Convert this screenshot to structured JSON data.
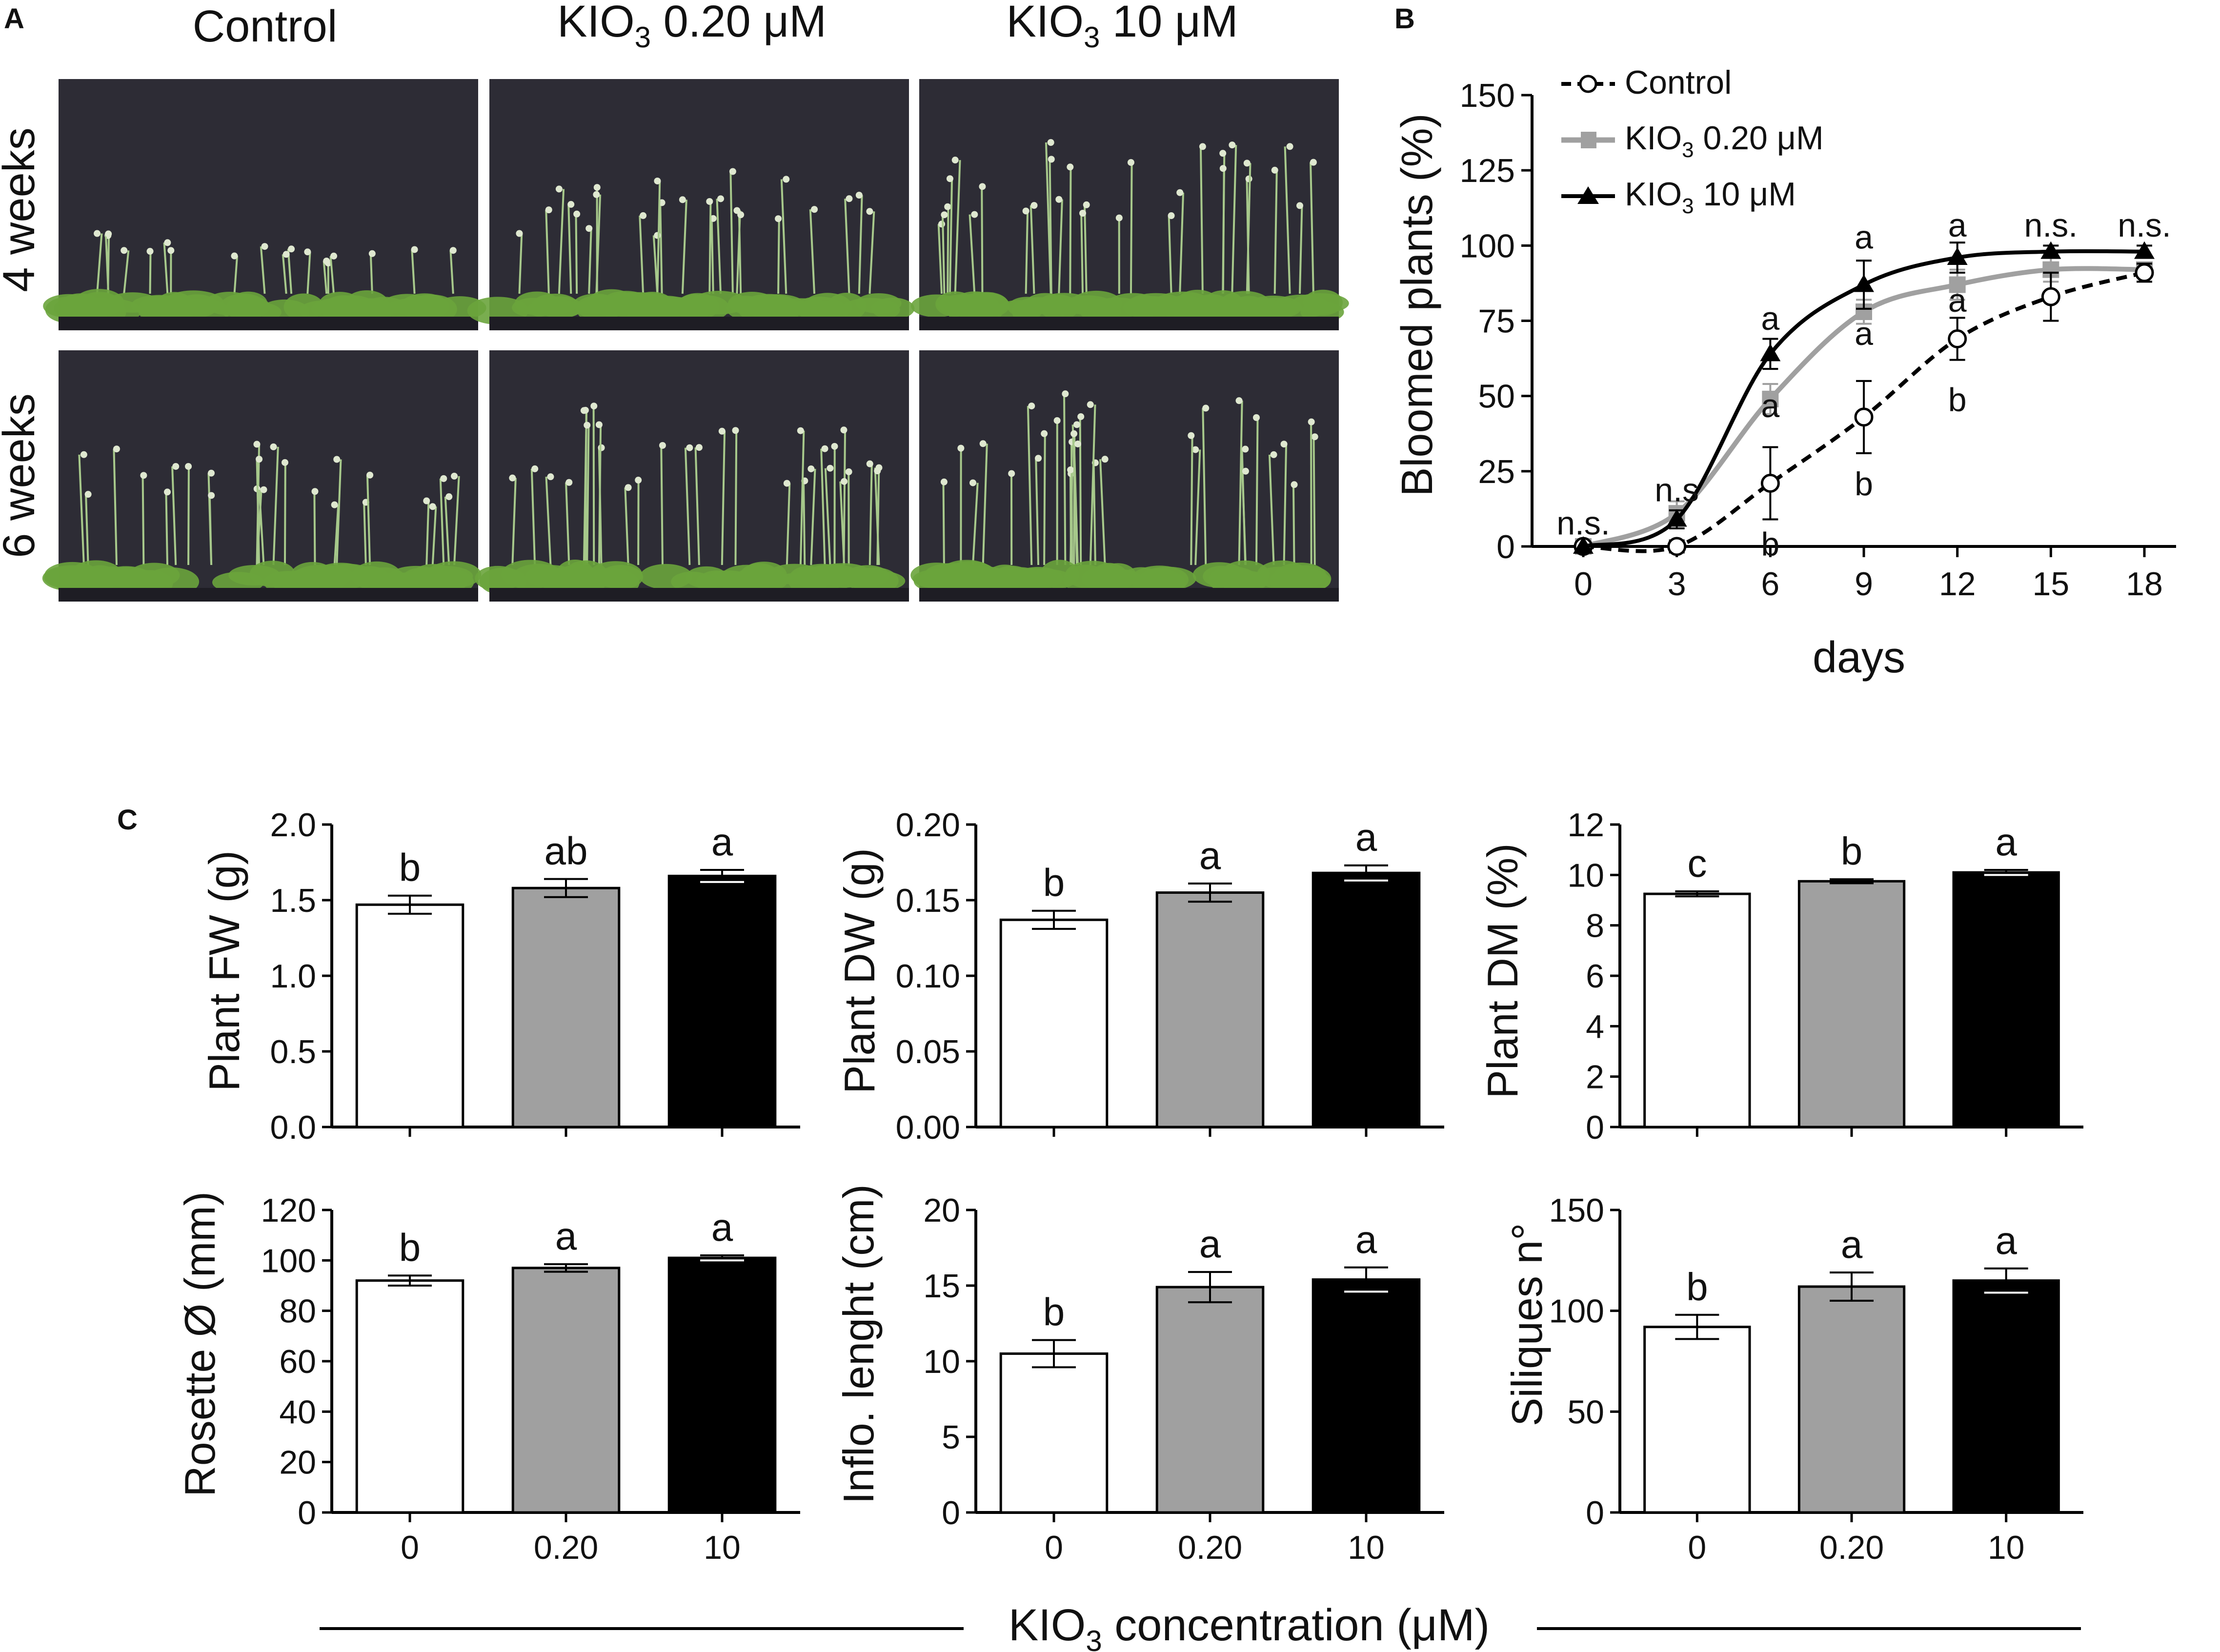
{
  "panels": {
    "a_letter": "A",
    "b_letter": "B",
    "c_letter": "C"
  },
  "photos": {
    "columns": [
      {
        "main": "Control",
        "sub": "",
        "tail": ""
      },
      {
        "main": "KIO",
        "sub": "3",
        "tail": " 0.20 μM"
      },
      {
        "main": "KIO",
        "sub": "3",
        "tail": " 10 μM"
      }
    ],
    "rows": [
      "4 weeks",
      "6 weeks"
    ],
    "relative_height": [
      [
        0.35,
        0.7,
        0.85
      ],
      [
        0.7,
        0.9,
        1.0
      ]
    ]
  },
  "colors": {
    "control": "#ffffff",
    "kio_low": "#a0a0a0",
    "kio_high": "#000000",
    "photo_bg": "#2d2c35",
    "leaf": "#6aa43c",
    "stem": "#a7c98b"
  },
  "chart_data": [
    {
      "id": "bloom",
      "type": "line",
      "title": "",
      "xlabel": "days",
      "ylabel": "Bloomed plants (%)",
      "x": [
        0,
        3,
        6,
        9,
        12,
        15,
        18
      ],
      "xlim": [
        0,
        18
      ],
      "ylim": [
        0,
        150
      ],
      "yticks": [
        0,
        25,
        50,
        75,
        100,
        125,
        150
      ],
      "xticks": [
        0,
        3,
        6,
        9,
        12,
        15,
        18
      ],
      "legend": [
        {
          "main": "Control",
          "sub": "",
          "tail": ""
        },
        {
          "main": "KIO",
          "sub": "3",
          "tail": " 0.20 μM"
        },
        {
          "main": "KIO",
          "sub": "3",
          "tail": " 10 μM"
        }
      ],
      "series": [
        {
          "name": "Control",
          "values": [
            0,
            0,
            21,
            43,
            69,
            83,
            91
          ],
          "errors": [
            0,
            2,
            12,
            12,
            7,
            8,
            3
          ]
        },
        {
          "name": "KIO3 0.20 μM",
          "values": [
            0,
            11,
            49,
            78,
            87,
            92,
            92
          ],
          "errors": [
            0,
            4,
            5,
            4,
            5,
            4,
            2
          ]
        },
        {
          "name": "KIO3 10 μM",
          "values": [
            0,
            9,
            64,
            87,
            96,
            98,
            98
          ],
          "errors": [
            0,
            3,
            5,
            8,
            5,
            2,
            2
          ]
        }
      ],
      "annotations": [
        {
          "x": 0,
          "y": 4,
          "text": "n.s."
        },
        {
          "x": 3,
          "y": 15,
          "text": "n.s"
        },
        {
          "x": 6,
          "y": 72,
          "text": "a"
        },
        {
          "x": 6,
          "y": 43,
          "text": "a"
        },
        {
          "x": 6,
          "y": -3,
          "text": "b"
        },
        {
          "x": 9,
          "y": 99,
          "text": "a"
        },
        {
          "x": 9,
          "y": 67,
          "text": "a"
        },
        {
          "x": 9,
          "y": 17,
          "text": "b"
        },
        {
          "x": 12,
          "y": 103,
          "text": "a"
        },
        {
          "x": 12,
          "y": 78,
          "text": "a"
        },
        {
          "x": 12,
          "y": 45,
          "text": "b"
        },
        {
          "x": 15,
          "y": 103,
          "text": "n.s."
        },
        {
          "x": 18,
          "y": 103,
          "text": "n.s."
        }
      ]
    },
    {
      "id": "fw",
      "type": "bar",
      "ylabel": "Plant FW (g)",
      "categories": [
        "0",
        "0.20",
        "10"
      ],
      "values": [
        1.47,
        1.58,
        1.66
      ],
      "errors": [
        0.06,
        0.06,
        0.04
      ],
      "letters": [
        "b",
        "ab",
        "a"
      ],
      "ylim": [
        0,
        2.0
      ],
      "yticks": [
        "0.0",
        "0.5",
        "1.0",
        "1.5",
        "2.0"
      ]
    },
    {
      "id": "dw",
      "type": "bar",
      "ylabel": "Plant DW (g)",
      "categories": [
        "0",
        "0.20",
        "10"
      ],
      "values": [
        0.137,
        0.155,
        0.168
      ],
      "errors": [
        0.006,
        0.006,
        0.005
      ],
      "letters": [
        "b",
        "a",
        "a"
      ],
      "ylim": [
        0,
        0.2
      ],
      "yticks": [
        "0.00",
        "0.05",
        "0.10",
        "0.15",
        "0.20"
      ]
    },
    {
      "id": "dm",
      "type": "bar",
      "ylabel": "Plant DM (%)",
      "categories": [
        "0",
        "0.20",
        "10"
      ],
      "values": [
        9.25,
        9.75,
        10.1
      ],
      "errors": [
        0.1,
        0.08,
        0.1
      ],
      "letters": [
        "c",
        "b",
        "a"
      ],
      "ylim": [
        0,
        12
      ],
      "yticks": [
        "0",
        "2",
        "4",
        "6",
        "8",
        "10",
        "12"
      ]
    },
    {
      "id": "rosette",
      "type": "bar",
      "ylabel": "Rosette Ø (mm)",
      "categories": [
        "0",
        "0.20",
        "10"
      ],
      "values": [
        92,
        97,
        101
      ],
      "errors": [
        2,
        1.5,
        1
      ],
      "letters": [
        "b",
        "a",
        "a"
      ],
      "ylim": [
        0,
        120
      ],
      "yticks": [
        "0",
        "20",
        "40",
        "60",
        "80",
        "100",
        "120"
      ]
    },
    {
      "id": "inflo",
      "type": "bar",
      "ylabel": "Inflo. lenght (cm)",
      "categories": [
        "0",
        "0.20",
        "10"
      ],
      "values": [
        10.5,
        14.9,
        15.4
      ],
      "errors": [
        0.9,
        1.0,
        0.8
      ],
      "letters": [
        "b",
        "a",
        "a"
      ],
      "ylim": [
        0,
        20
      ],
      "yticks": [
        "0",
        "5",
        "10",
        "15",
        "20"
      ]
    },
    {
      "id": "siliques",
      "type": "bar",
      "ylabel": "Siliques n°",
      "categories": [
        "0",
        "0.20",
        "10"
      ],
      "values": [
        92,
        112,
        115
      ],
      "errors": [
        6,
        7,
        6
      ],
      "letters": [
        "b",
        "a",
        "a"
      ],
      "ylim": [
        0,
        150
      ],
      "yticks": [
        "0",
        "50",
        "100",
        "150"
      ]
    }
  ],
  "shared_xlabel": {
    "main": "KIO",
    "sub": "3",
    "tail": " concentration (μM)"
  }
}
